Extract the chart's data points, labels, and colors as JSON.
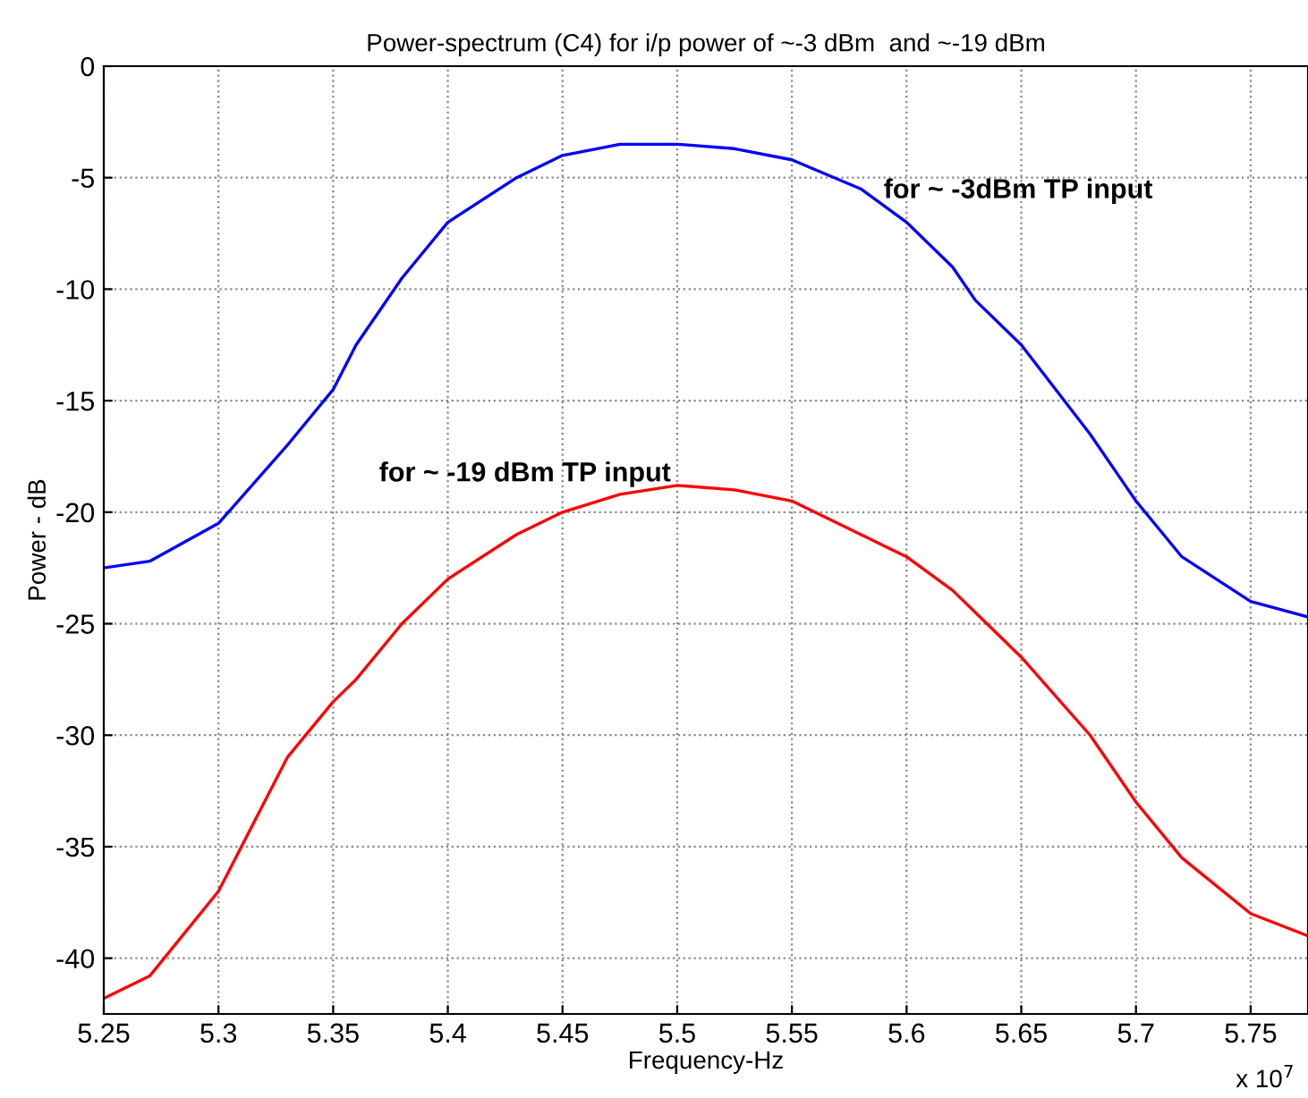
{
  "chart_data": {
    "type": "line",
    "title": "Power-spectrum (C4) for i/p power of ~-3 dBm  and ~-19 dBm",
    "xlabel": "Frequency-Hz",
    "ylabel": "Power - dB",
    "annotations": [
      "for ~ -3dBm TP input",
      "for ~ -19 dBm TP input",
      "x 10$^{7}$"
    ],
    "x": [
      5.25,
      5.27,
      5.3,
      5.33,
      5.35,
      5.36,
      5.38,
      5.4,
      5.43,
      5.45,
      5.475,
      5.5,
      5.525,
      5.55,
      5.58,
      5.6,
      5.62,
      5.63,
      5.65,
      5.68,
      5.7,
      5.72,
      5.75,
      5.775
    ],
    "series": [
      {
        "color": "#0000ff",
        "values": [
          -22.5,
          -22.2,
          -20.5,
          -17,
          -14.5,
          -12.5,
          -9.5,
          -7,
          -5,
          -4,
          -3.5,
          -3.5,
          -3.7,
          -4.2,
          -5.5,
          -7,
          -9,
          -10.5,
          -12.5,
          -16.5,
          -19.5,
          -22,
          -24,
          -24.7
        ]
      },
      {
        "color": "#ff0000",
        "values": [
          -41.8,
          -40.8,
          -37,
          -31,
          -28.5,
          -27.5,
          -25,
          -23,
          -21,
          -20,
          -19.2,
          -18.8,
          -19,
          -19.5,
          -21,
          -22,
          -23.5,
          -24.5,
          -26.5,
          -30,
          -33,
          -35.5,
          -38,
          -39
        ]
      }
    ],
    "xlim": [
      5.25,
      5.775
    ],
    "ylim": [
      -42.5,
      0
    ],
    "xticks": [
      5.25,
      5.3,
      5.35,
      5.4,
      5.45,
      5.5,
      5.55,
      5.6,
      5.65,
      5.7,
      5.75
    ],
    "yticks": [
      -40,
      -35,
      -30,
      -25,
      -20,
      -15,
      -10,
      -5,
      0
    ],
    "grid": true,
    "line_style": "solid"
  }
}
